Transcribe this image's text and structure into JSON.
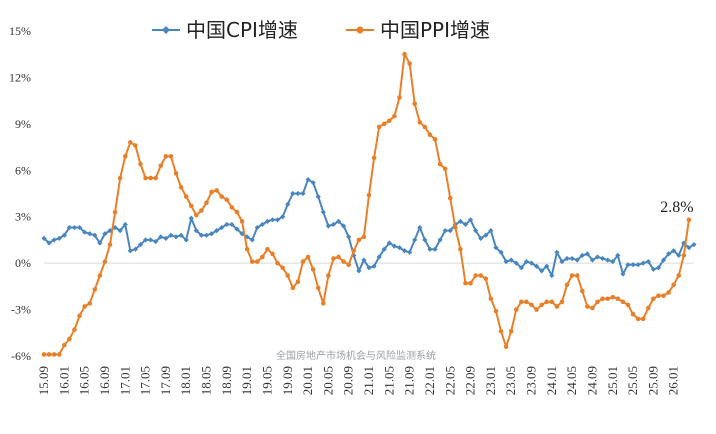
{
  "chart_data": {
    "type": "line",
    "title": "",
    "xlabel": "",
    "ylabel": "",
    "ylim": [
      -6,
      15
    ],
    "yticks": [
      -6,
      -3,
      0,
      3,
      6,
      9,
      12,
      15
    ],
    "ytick_labels": [
      "-6%",
      "-3%",
      "0%",
      "3%",
      "6%",
      "9%",
      "12%",
      "15%"
    ],
    "x_start": "15.09",
    "x_tick_labels": [
      "15.09",
      "16.01",
      "16.05",
      "16.09",
      "17.01",
      "17.05",
      "17.09",
      "18.01",
      "18.05",
      "18.09",
      "19.01",
      "19.05",
      "19.09",
      "20.01",
      "20.05",
      "20.09",
      "21.01",
      "21.05",
      "21.09",
      "22.01",
      "22.05",
      "22.09",
      "23.01",
      "23.05",
      "23.09",
      "24.01",
      "24.05",
      "24.09",
      "25.01",
      "25.05",
      "25.09",
      "26.01"
    ],
    "legend": "top",
    "grid": false,
    "colors": {
      "cpi": "#4a86be",
      "ppi": "#e8802a"
    },
    "series": [
      {
        "name": "中国CPI增速",
        "color": "#4a86be",
        "values": [
          1.6,
          1.3,
          1.5,
          1.6,
          1.8,
          2.3,
          2.3,
          2.3,
          2.0,
          1.9,
          1.8,
          1.3,
          1.9,
          2.1,
          2.3,
          2.1,
          2.5,
          0.8,
          0.9,
          1.2,
          1.5,
          1.5,
          1.4,
          1.7,
          1.6,
          1.8,
          1.7,
          1.8,
          1.5,
          2.9,
          2.1,
          1.8,
          1.8,
          1.9,
          2.1,
          2.3,
          2.5,
          2.5,
          2.2,
          1.9,
          1.7,
          1.5,
          2.3,
          2.5,
          2.7,
          2.8,
          2.8,
          3.0,
          3.8,
          4.5,
          4.5,
          4.5,
          5.4,
          5.2,
          4.3,
          3.3,
          2.4,
          2.5,
          2.7,
          2.4,
          1.7,
          0.5,
          -0.5,
          0.2,
          -0.3,
          -0.2,
          0.4,
          0.9,
          1.3,
          1.1,
          1.0,
          0.8,
          0.7,
          1.5,
          2.3,
          1.5,
          0.9,
          0.9,
          1.5,
          2.1,
          2.1,
          2.5,
          2.7,
          2.5,
          2.8,
          2.1,
          1.6,
          1.8,
          2.1,
          1.0,
          0.7,
          0.1,
          0.2,
          0.0,
          -0.3,
          0.1,
          0.0,
          -0.2,
          -0.5,
          -0.2,
          -0.8,
          0.7,
          0.1,
          0.3,
          0.3,
          0.2,
          0.5,
          0.6,
          0.2,
          0.4,
          0.3,
          0.2,
          0.1,
          0.5,
          -0.7,
          -0.1,
          -0.1,
          -0.1,
          0.0,
          0.1,
          -0.4,
          -0.3,
          0.2,
          0.6,
          0.8,
          0.5,
          1.3,
          1.0,
          1.2
        ]
      },
      {
        "name": "中国PPI增速",
        "color": "#e8802a",
        "values": [
          -5.9,
          -5.9,
          -5.9,
          -5.9,
          -5.3,
          -4.9,
          -4.3,
          -3.4,
          -2.8,
          -2.6,
          -1.7,
          -0.8,
          0.1,
          1.2,
          3.3,
          5.5,
          6.9,
          7.8,
          7.6,
          6.4,
          5.5,
          5.5,
          5.5,
          6.3,
          6.9,
          6.9,
          5.8,
          4.9,
          4.3,
          3.7,
          3.1,
          3.4,
          3.9,
          4.6,
          4.7,
          4.3,
          4.1,
          3.6,
          3.3,
          2.7,
          0.9,
          0.1,
          0.1,
          0.4,
          0.9,
          0.6,
          0.0,
          -0.3,
          -0.8,
          -1.6,
          -1.2,
          0.1,
          0.4,
          -0.4,
          -1.6,
          -2.6,
          -0.8,
          0.3,
          0.4,
          0.1,
          -0.1,
          0.8,
          1.5,
          1.7,
          4.4,
          6.8,
          8.8,
          9.0,
          9.2,
          9.5,
          10.7,
          13.5,
          12.9,
          10.3,
          9.1,
          8.8,
          8.3,
          8.0,
          6.4,
          6.1,
          4.2,
          2.3,
          0.9,
          -1.3,
          -1.3,
          -0.8,
          -0.8,
          -1.0,
          -2.3,
          -3.1,
          -4.4,
          -5.4,
          -4.4,
          -3.0,
          -2.5,
          -2.5,
          -2.7,
          -3.0,
          -2.7,
          -2.5,
          -2.5,
          -2.8,
          -2.5,
          -1.4,
          -0.8,
          -0.8,
          -1.8,
          -2.8,
          -2.9,
          -2.5,
          -2.3,
          -2.3,
          -2.2,
          -2.3,
          -2.5,
          -2.7,
          -3.3,
          -3.6,
          -3.6,
          -2.9,
          -2.3,
          -2.1,
          -2.1,
          -1.9,
          -1.4,
          -0.8,
          0.5,
          2.8
        ]
      }
    ],
    "annotations": [
      {
        "text": "2.8%",
        "series": "中国PPI增速",
        "point": "last"
      }
    ],
    "watermark": "全国房地产市场机会与风险监测系统"
  }
}
